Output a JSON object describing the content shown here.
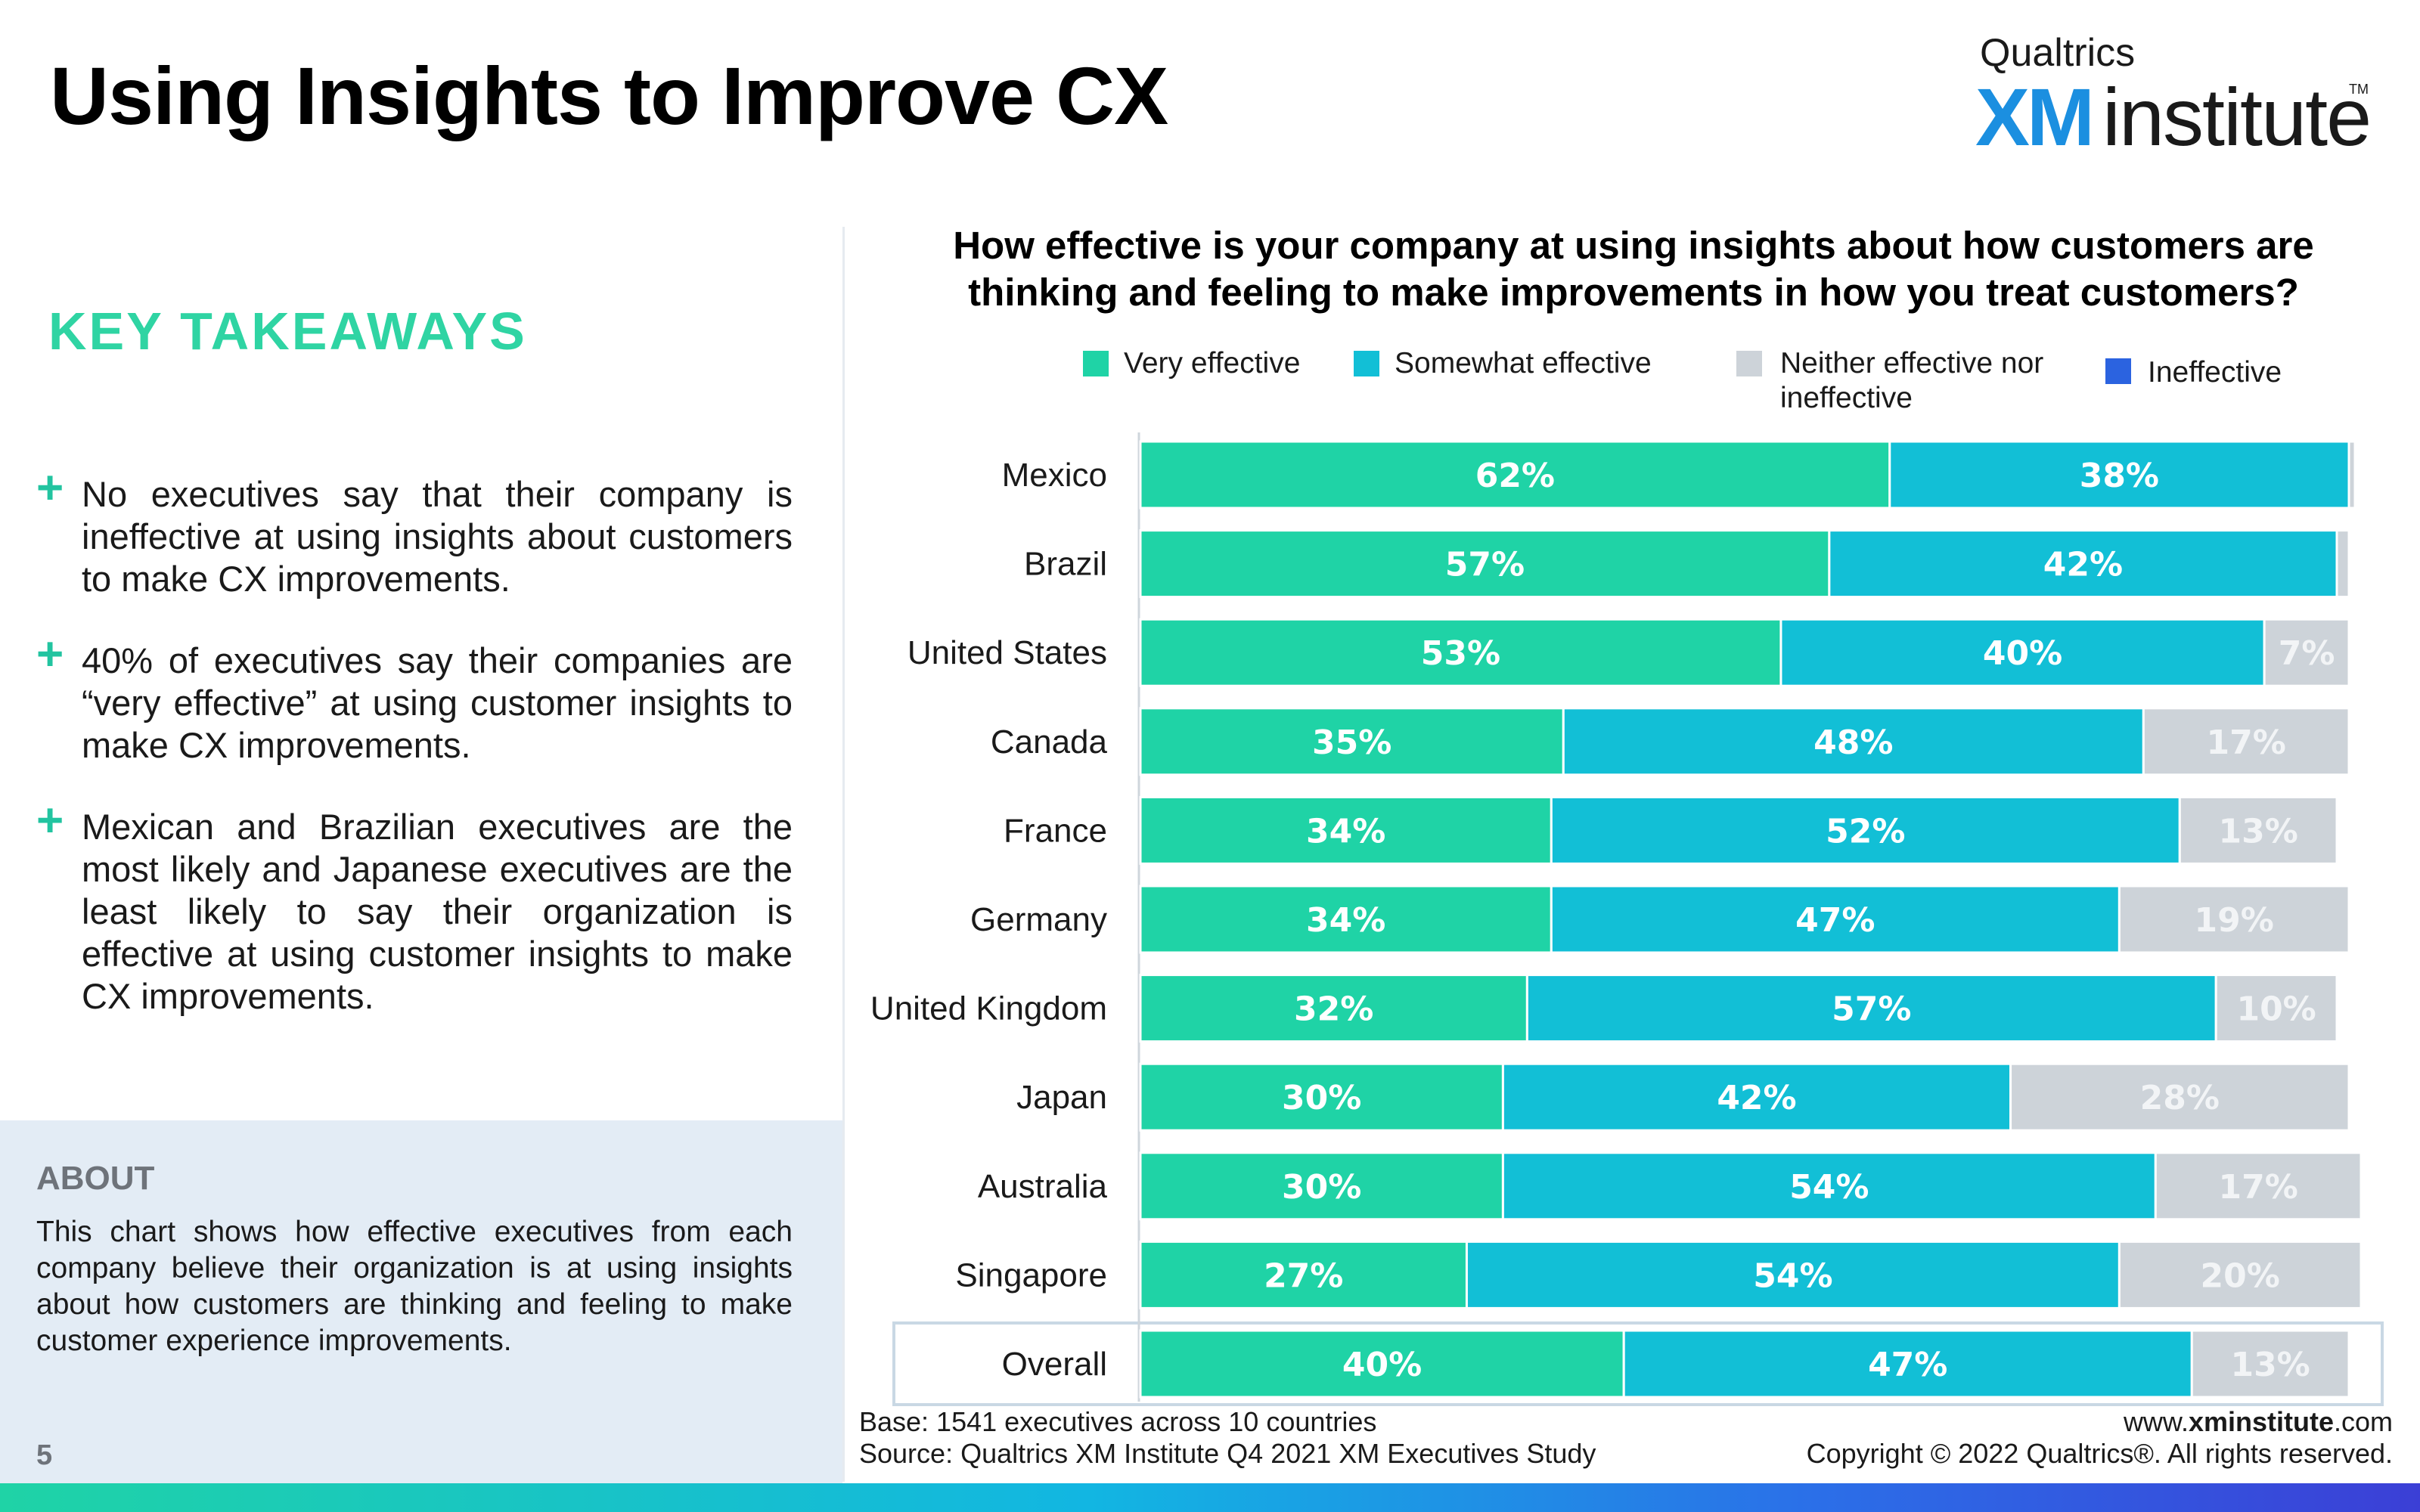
{
  "page": {
    "title": "Using Insights to Improve CX",
    "logo": {
      "top": "Qualtrics",
      "xm": "XM",
      "word": "institute",
      "tm": "TM"
    },
    "takeaways_heading": "KEY TAKEAWAYS",
    "takeaways": [
      "No executives say that their company is ineffective at using insights about customers to make CX improvements.",
      "40% of executives say their companies are “very effective” at using customer insights to make CX improvements.",
      "Mexican and Brazilian executives are the most likely and Japanese executives are the least likely to say their organization is effective at using customer insights to make CX improvements."
    ],
    "about_heading": "ABOUT",
    "about_text": "This chart shows how effective executives from each company believe their organization is at using insights about how customers are thinking and feeling to make customer experience improvements.",
    "page_number": "5",
    "base": "Base: 1541 executives across 10 countries",
    "source": "Source: Qualtrics XM Institute Q4 2021 XM Executives Study",
    "website_pre": "www.",
    "website_bold": "xminstitute",
    "website_post": ".com",
    "copyright": "Copyright © 2022 Qualtrics®. All rights reserved."
  },
  "chart_data": {
    "type": "bar",
    "orientation": "horizontal",
    "stacked": true,
    "title": "How effective is your company at using insights about how customers are thinking and feeling to make improvements in how you treat customers?",
    "categories": [
      "Mexico",
      "Brazil",
      "United States",
      "Canada",
      "France",
      "Germany",
      "United Kingdom",
      "Japan",
      "Australia",
      "Singapore",
      "Overall"
    ],
    "series": [
      {
        "name": "Very effective",
        "color": "#1fd3a6",
        "values": [
          62,
          57,
          53,
          35,
          34,
          34,
          32,
          30,
          30,
          27,
          40
        ]
      },
      {
        "name": "Somewhat effective",
        "color": "#12bfd6",
        "values": [
          38,
          42,
          40,
          48,
          52,
          47,
          57,
          42,
          54,
          54,
          47
        ]
      },
      {
        "name": "Neither effective nor ineffective",
        "color": "#cdd3d9",
        "values": [
          0.5,
          1,
          7,
          17,
          13,
          19,
          10,
          28,
          17,
          20,
          13
        ]
      },
      {
        "name": "Ineffective",
        "color": "#2b63e0",
        "values": [
          0,
          0,
          0,
          0,
          0,
          0,
          0,
          0,
          0,
          0,
          0
        ]
      }
    ],
    "data_labels": [
      [
        "62%",
        "38%",
        ""
      ],
      [
        "57%",
        "42%",
        ""
      ],
      [
        "53%",
        "40%",
        "7%"
      ],
      [
        "35%",
        "48%",
        "17%"
      ],
      [
        "34%",
        "52%",
        "13%"
      ],
      [
        "34%",
        "47%",
        "19%"
      ],
      [
        "32%",
        "57%",
        "10%"
      ],
      [
        "30%",
        "42%",
        "28%"
      ],
      [
        "30%",
        "54%",
        "17%"
      ],
      [
        "27%",
        "54%",
        "20%"
      ],
      [
        "40%",
        "47%",
        "13%"
      ]
    ],
    "highlighted_category": "Overall",
    "legend_position": "top",
    "xlim": [
      0,
      100
    ]
  }
}
